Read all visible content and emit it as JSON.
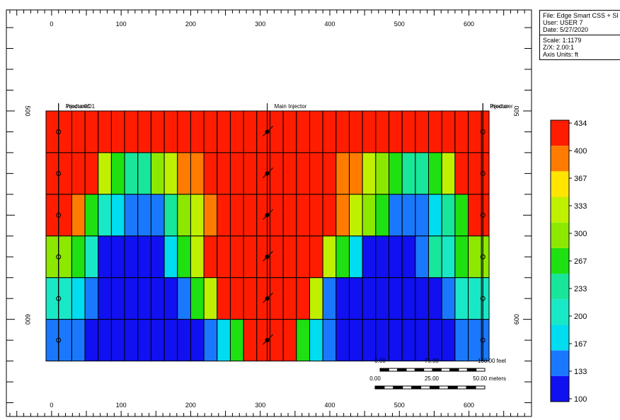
{
  "info": {
    "file": "File: Edge Smart CSS + SI",
    "user": "User:  USER 7",
    "date": "Date: 5/27/2020",
    "scale": "Scale: 1:1179",
    "zx": "Z/X: 2.00:1",
    "axis_units": "Axis Units: ft"
  },
  "x_axis": {
    "ticks": [
      "0",
      "100",
      "200",
      "300",
      "400",
      "500",
      "600"
    ],
    "tick_values": [
      0,
      100,
      200,
      300,
      400,
      500,
      600
    ],
    "range": [
      -65,
      690
    ]
  },
  "y_axis": {
    "ticks": [
      "500",
      "600"
    ],
    "tick_values": [
      500,
      600
    ],
    "range": [
      451.5,
      646.6
    ]
  },
  "wells": [
    {
      "label": "Producer01",
      "x": 10,
      "type": "producer"
    },
    {
      "label": "Injector01",
      "x": 10,
      "type": "injector"
    },
    {
      "label": "Main Injector",
      "x": 310,
      "type": "injector"
    },
    {
      "label": "Producer",
      "x": 620,
      "type": "producer"
    },
    {
      "label": "Injector",
      "x": 620,
      "type": "injector"
    }
  ],
  "scalebars": [
    {
      "labels": [
        "0.00",
        "75.00",
        "150.00 feet"
      ]
    },
    {
      "labels": [
        "0.00",
        "25.00",
        "50.00 meters"
      ]
    }
  ],
  "colorbar": {
    "labels": [
      "434",
      "400",
      "367",
      "333",
      "300",
      "267",
      "233",
      "200",
      "167",
      "133",
      "100"
    ],
    "colors": [
      "#ff1c00",
      "#ff7c00",
      "#ffe500",
      "#bff000",
      "#8de800",
      "#1fe010",
      "#18e69a",
      "#19e8c6",
      "#00dcf0",
      "#1a78ff",
      "#1010f0"
    ]
  },
  "chart_data": {
    "type": "heatmap",
    "title": "",
    "xlabel": "",
    "ylabel": "",
    "xlim": [
      -65,
      690
    ],
    "ylim": [
      451.5,
      646.6
    ],
    "x_edges": [
      -8,
      10,
      29,
      48,
      67,
      86,
      105,
      124,
      143,
      162,
      181,
      200,
      219,
      238,
      257,
      276,
      295,
      314,
      333,
      352,
      371,
      390,
      409,
      428,
      447,
      466,
      485,
      504,
      523,
      542,
      561,
      580,
      599,
      618,
      629
    ],
    "y_edges": [
      500,
      520,
      540,
      560,
      580,
      600,
      620
    ],
    "value_scale": [
      100,
      434
    ],
    "values": [
      [
        434,
        434,
        434,
        434,
        434,
        434,
        434,
        434,
        434,
        434,
        434,
        434,
        434,
        434,
        434,
        434,
        434,
        434,
        434,
        434,
        434,
        434,
        434,
        434,
        434,
        434,
        434,
        434,
        434,
        434,
        434,
        434,
        434,
        434
      ],
      [
        434,
        434,
        434,
        434,
        333,
        267,
        233,
        233,
        300,
        333,
        400,
        400,
        434,
        434,
        434,
        434,
        434,
        434,
        434,
        434,
        434,
        434,
        400,
        400,
        333,
        300,
        267,
        233,
        233,
        267,
        333,
        434,
        434,
        434
      ],
      [
        434,
        434,
        400,
        267,
        200,
        167,
        133,
        133,
        133,
        233,
        300,
        333,
        400,
        434,
        434,
        434,
        434,
        434,
        434,
        434,
        434,
        434,
        400,
        333,
        300,
        267,
        133,
        133,
        133,
        167,
        233,
        267,
        434,
        434
      ],
      [
        300,
        300,
        267,
        200,
        100,
        100,
        100,
        100,
        100,
        167,
        267,
        333,
        434,
        434,
        434,
        434,
        434,
        434,
        434,
        434,
        434,
        333,
        267,
        167,
        100,
        100,
        100,
        100,
        133,
        233,
        200,
        267,
        300,
        300
      ],
      [
        200,
        200,
        167,
        133,
        100,
        100,
        100,
        100,
        100,
        100,
        133,
        267,
        333,
        434,
        434,
        434,
        434,
        434,
        434,
        434,
        333,
        133,
        100,
        100,
        100,
        100,
        100,
        100,
        100,
        100,
        133,
        200,
        200,
        200
      ],
      [
        133,
        133,
        133,
        100,
        100,
        100,
        100,
        100,
        100,
        100,
        100,
        100,
        133,
        167,
        267,
        434,
        434,
        434,
        434,
        267,
        167,
        133,
        100,
        100,
        100,
        100,
        100,
        100,
        100,
        100,
        100,
        133,
        133,
        133
      ]
    ]
  }
}
